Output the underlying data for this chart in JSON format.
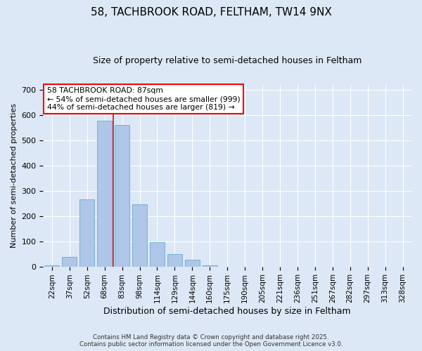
{
  "title1": "58, TACHBROOK ROAD, FELTHAM, TW14 9NX",
  "title2": "Size of property relative to semi-detached houses in Feltham",
  "xlabel": "Distribution of semi-detached houses by size in Feltham",
  "ylabel": "Number of semi-detached properties",
  "bar_color": "#aec6e8",
  "bar_edgecolor": "#7aafd4",
  "background_color": "#dce8f5",
  "grid_color": "#ffffff",
  "categories": [
    "22sqm",
    "37sqm",
    "52sqm",
    "68sqm",
    "83sqm",
    "98sqm",
    "114sqm",
    "129sqm",
    "144sqm",
    "160sqm",
    "175sqm",
    "190sqm",
    "205sqm",
    "221sqm",
    "236sqm",
    "251sqm",
    "267sqm",
    "282sqm",
    "297sqm",
    "313sqm",
    "328sqm"
  ],
  "values": [
    5,
    38,
    265,
    578,
    560,
    245,
    97,
    50,
    27,
    5,
    0,
    0,
    0,
    0,
    0,
    0,
    0,
    0,
    0,
    0,
    0
  ],
  "property_label": "58 TACHBROOK ROAD: 87sqm",
  "pct_smaller": 54,
  "pct_smaller_count": 999,
  "pct_larger": 44,
  "pct_larger_count": 819,
  "vline_x_index": 3.5,
  "ylim": [
    0,
    720
  ],
  "yticks": [
    0,
    100,
    200,
    300,
    400,
    500,
    600,
    700
  ],
  "footer1": "Contains HM Land Registry data © Crown copyright and database right 2025.",
  "footer2": "Contains public sector information licensed under the Open Government Licence v3.0."
}
